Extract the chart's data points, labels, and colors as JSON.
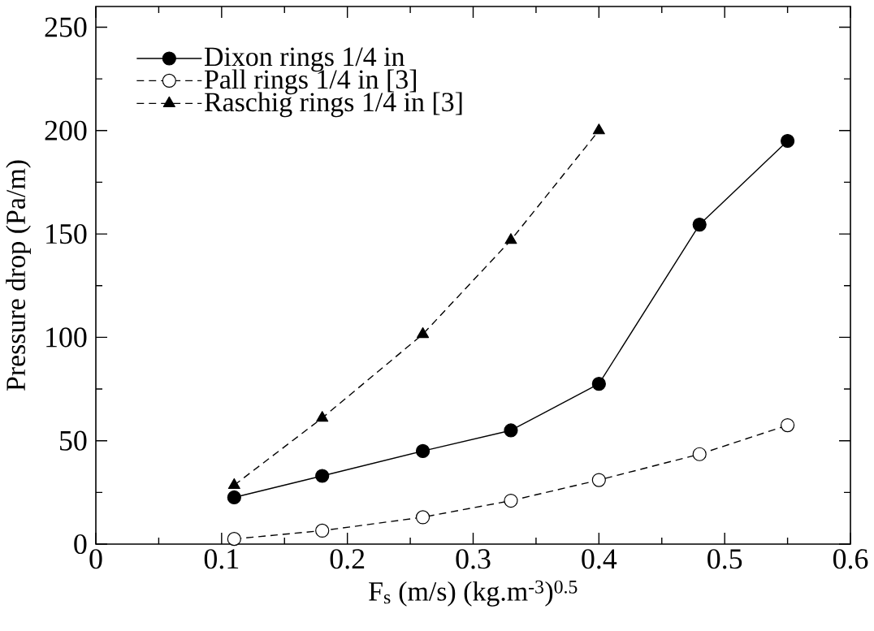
{
  "chart_data": {
    "type": "line",
    "xlabel": "F$_{s}$ (m/s) (kg.m$^{-3}$)$^{0.5}$",
    "ylabel": "Pressure drop (Pa/m)",
    "xlim": [
      0,
      0.6
    ],
    "ylim": [
      0,
      260
    ],
    "xticks": [
      0,
      0.1,
      0.2,
      0.3,
      0.4,
      0.5,
      0.6
    ],
    "yticks": [
      0,
      50,
      100,
      150,
      200,
      250
    ],
    "grid": false,
    "legend": "top left",
    "series": [
      {
        "name": "Dixon rings 1/4 in",
        "color": "#000000",
        "marker": "circle",
        "line_style": "solid",
        "x": [
          0.11,
          0.18,
          0.26,
          0.33,
          0.4,
          0.48,
          0.55
        ],
        "values": [
          22.6,
          33,
          45,
          55,
          77.5,
          154.5,
          195
        ]
      },
      {
        "name": "Pall rings 1/4 in [3]",
        "color": "#000000",
        "marker": "circle-open",
        "line_style": "dashed",
        "x": [
          0.11,
          0.18,
          0.26,
          0.33,
          0.4,
          0.48,
          0.55
        ],
        "values": [
          2.5,
          6.5,
          13,
          21,
          31,
          43.5,
          57.5
        ]
      },
      {
        "name": "Raschig rings 1/4 in [3]",
        "color": "#000000",
        "marker": "triangle",
        "line_style": "dashed",
        "x": [
          0.11,
          0.18,
          0.26,
          0.33,
          0.4
        ],
        "values": [
          28.5,
          61,
          101.5,
          147,
          200
        ]
      }
    ]
  }
}
